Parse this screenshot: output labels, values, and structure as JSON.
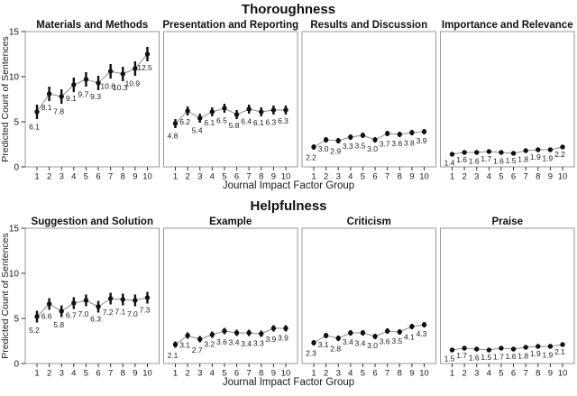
{
  "colors": {
    "background": "#ffffff",
    "panel_border": "#999999",
    "series_line": "#8c8c8c",
    "marker": "#111111",
    "error_bar": "#111111",
    "text": "#1a1a1a",
    "tick": "#333333"
  },
  "chart_data": [
    {
      "type": "line",
      "group_title": "Thoroughness",
      "xlabel": "Journal Impact Factor Group",
      "ylabel": "Predicted Count of Sentences",
      "x": [
        1,
        2,
        3,
        4,
        5,
        6,
        7,
        8,
        9,
        10
      ],
      "ylim": [
        0,
        15
      ],
      "yticks": [
        0,
        5,
        10,
        15
      ],
      "grid": false,
      "legend": "none",
      "markers": "filled-circle-with-error-bars",
      "panels": [
        {
          "title": "Materials and Methods",
          "values": [
            6.1,
            8.1,
            7.8,
            9.1,
            9.7,
            9.3,
            10.6,
            10.3,
            10.9,
            12.5
          ],
          "error_halfwidth": 0.8
        },
        {
          "title": "Presentation and Reporting",
          "values": [
            4.8,
            6.2,
            5.4,
            6.1,
            6.5,
            5.8,
            6.4,
            6.1,
            6.3,
            6.3
          ],
          "error_halfwidth": 0.5
        },
        {
          "title": "Results and Discussion",
          "values": [
            2.2,
            3.0,
            2.9,
            3.3,
            3.5,
            3.0,
            3.7,
            3.6,
            3.8,
            3.9
          ],
          "error_halfwidth": 0.3
        },
        {
          "title": "Importance and Relevance",
          "values": [
            1.4,
            1.6,
            1.6,
            1.7,
            1.6,
            1.5,
            1.8,
            1.9,
            1.9,
            2.2
          ],
          "error_halfwidth": 0.12
        }
      ]
    },
    {
      "type": "line",
      "group_title": "Helpfulness",
      "xlabel": "Journal Impact Factor Group",
      "ylabel": "Predicted Count of Sentences",
      "x": [
        1,
        2,
        3,
        4,
        5,
        6,
        7,
        8,
        9,
        10
      ],
      "ylim": [
        0,
        15
      ],
      "yticks": [
        0,
        5,
        10,
        15
      ],
      "grid": false,
      "legend": "none",
      "markers": "filled-circle-with-error-bars",
      "panels": [
        {
          "title": "Suggestion and Solution",
          "values": [
            5.2,
            6.6,
            5.8,
            6.7,
            7.0,
            6.3,
            7.2,
            7.1,
            7.0,
            7.3
          ],
          "error_halfwidth": 0.65
        },
        {
          "title": "Example",
          "values": [
            2.1,
            3.1,
            2.7,
            3.2,
            3.6,
            3.4,
            3.4,
            3.3,
            3.9,
            3.9
          ],
          "error_halfwidth": 0.35
        },
        {
          "title": "Criticism",
          "values": [
            2.3,
            3.1,
            2.8,
            3.4,
            3.4,
            3.0,
            3.6,
            3.5,
            4.1,
            4.3
          ],
          "error_halfwidth": 0.3
        },
        {
          "title": "Praise",
          "values": [
            1.5,
            1.7,
            1.6,
            1.5,
            1.7,
            1.6,
            1.8,
            1.9,
            1.9,
            2.1
          ],
          "error_halfwidth": 0.12
        }
      ]
    }
  ]
}
